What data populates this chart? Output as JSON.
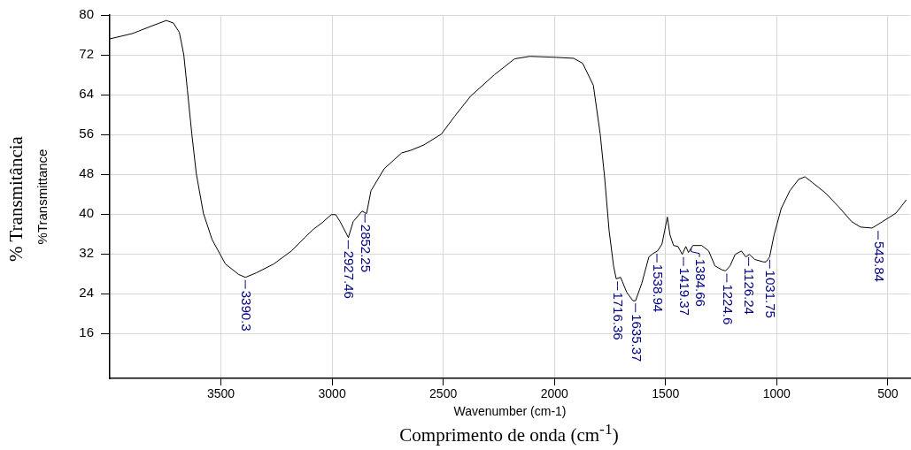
{
  "chart_data": {
    "type": "line",
    "xlabel": "Wavenumber (cm-1)",
    "ylabel": "%Transmittance",
    "annotations": [
      "% Transmitância",
      "Comprimento de onda (cm$^{-1}$)",
      {
        "text": "3390.3",
        "x": 3390.3,
        "y": 27.3
      },
      {
        "text": "2927.46",
        "x": 2927.46,
        "y": 35.3
      },
      {
        "text": "2852.25",
        "x": 2852.25,
        "y": 40.6
      },
      {
        "text": "1716.36",
        "x": 1716.36,
        "y": 27
      },
      {
        "text": "1635.37",
        "x": 1635.37,
        "y": 22.6
      },
      {
        "text": "1538.94",
        "x": 1538.94,
        "y": 32.6
      },
      {
        "text": "1419.37",
        "x": 1419.37,
        "y": 31.9
      },
      {
        "text": "1384.66",
        "x": 1384.66,
        "y": 33.7
      },
      {
        "text": "1224.6",
        "x": 1224.6,
        "y": 28.6
      },
      {
        "text": "1126.24",
        "x": 1126.24,
        "y": 31.9
      },
      {
        "text": "1031.75",
        "x": 1031.75,
        "y": 31.4
      },
      {
        "text": "543.84",
        "x": 543.84,
        "y": 37.2
      }
    ],
    "x": [
      4000,
      3897,
      3817,
      3746,
      3714,
      3687,
      3667,
      3651,
      3631,
      3611,
      3579,
      3540,
      3480,
      3421,
      3390,
      3341,
      3262,
      3183,
      3123,
      3083,
      3044,
      3004,
      2984,
      2964,
      2927,
      2905,
      2865,
      2845,
      2825,
      2766,
      2687,
      2647,
      2587,
      2508,
      2448,
      2377,
      2270,
      2179,
      2111,
      1992,
      1913,
      1873,
      1825,
      1794,
      1774,
      1754,
      1734,
      1722,
      1702,
      1675,
      1647,
      1635,
      1607,
      1575,
      1556,
      1536,
      1516,
      1504,
      1492,
      1480,
      1464,
      1444,
      1425,
      1409,
      1397,
      1377,
      1337,
      1306,
      1278,
      1246,
      1230,
      1210,
      1187,
      1159,
      1139,
      1123,
      1099,
      1060,
      1048,
      1032,
      1012,
      980,
      941,
      901,
      873,
      841,
      782,
      722,
      663,
      623,
      571,
      524,
      464,
      437,
      417
    ],
    "series": [
      {
        "color": "#000000",
        "values": [
          75.2,
          76.3,
          77.7,
          78.9,
          78.4,
          76.5,
          72,
          65,
          56.1,
          48.2,
          40.2,
          34.9,
          30,
          27.9,
          27.3,
          28.2,
          30,
          32.6,
          35.3,
          37,
          38.3,
          39.9,
          39.9,
          38.5,
          35.3,
          38.5,
          40.6,
          40.1,
          44.7,
          49.1,
          52.3,
          52.8,
          53.9,
          56.1,
          59.7,
          63.7,
          68,
          71.2,
          71.7,
          71.5,
          71.3,
          70.3,
          65.9,
          56.1,
          47.3,
          36.7,
          29.6,
          27,
          27.3,
          24.3,
          22.6,
          22.6,
          26.1,
          31.4,
          32.1,
          32.6,
          34,
          36.7,
          39.4,
          35.8,
          33.7,
          33.5,
          31.9,
          33.5,
          32.3,
          33.7,
          33.7,
          32.6,
          29.6,
          28.8,
          28.6,
          29.6,
          31.9,
          32.6,
          31.4,
          31.9,
          30.9,
          30.4,
          30.4,
          31.4,
          35.8,
          41.1,
          44.7,
          47,
          47.5,
          46.4,
          44.3,
          41.5,
          38.5,
          37.4,
          37.2,
          38.5,
          40.2,
          41.7,
          42.9
        ]
      }
    ],
    "xlim": [
      4000,
      400
    ],
    "xticks": [
      3500,
      3000,
      2500,
      2000,
      1500,
      1000,
      500
    ],
    "ylim": [
      7,
      80
    ],
    "yticks": [
      16,
      24,
      32,
      40,
      48,
      56,
      64,
      72,
      80
    ],
    "grid": true,
    "legend": false,
    "marker": "none",
    "line_style": "solid"
  }
}
